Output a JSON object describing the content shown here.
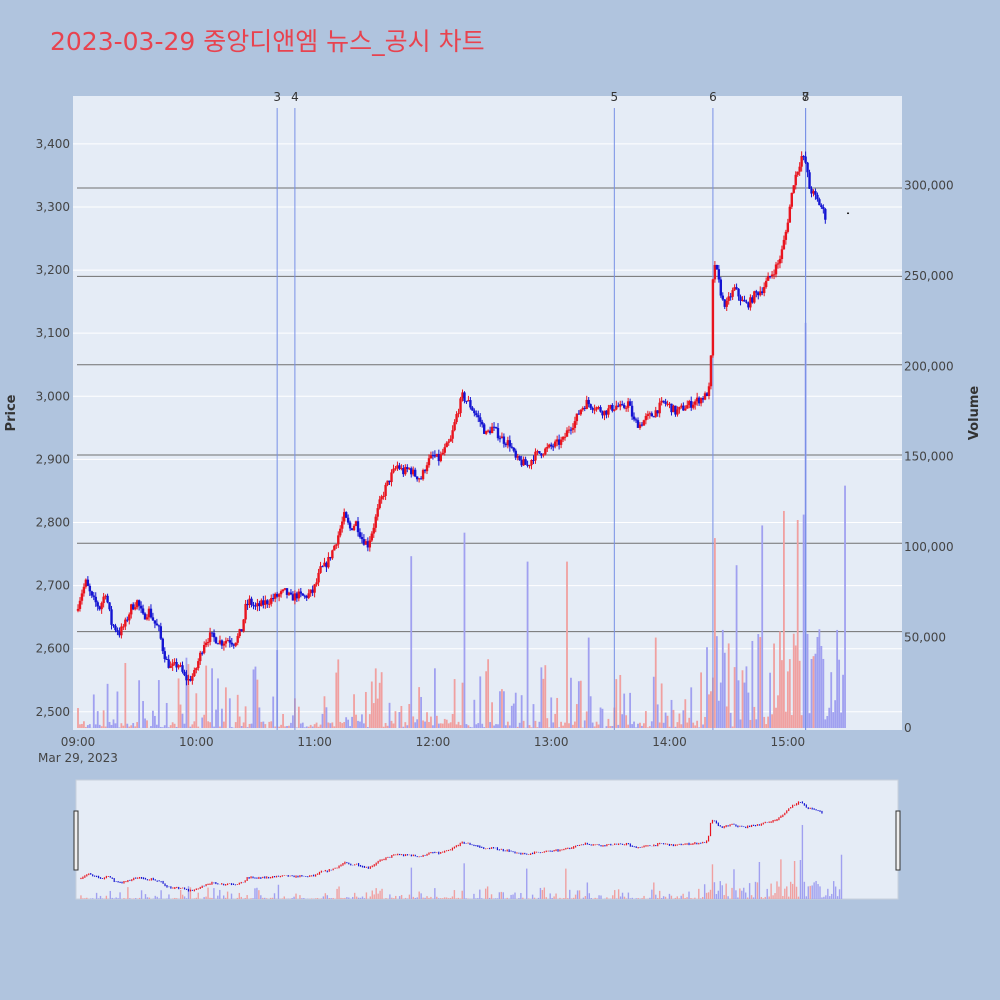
{
  "chart_data": {
    "type": "candlestick",
    "title": "2023-03-29 중앙디앤엠 뉴스_공시 차트",
    "date_label": "Mar 29, 2023",
    "y_label": "Price",
    "y2_label": "Volume",
    "x_ticks": [
      "09:00",
      "10:00",
      "11:00",
      "12:00",
      "13:00",
      "14:00",
      "15:00"
    ],
    "y_ticks": [
      "2,500",
      "2,600",
      "2,700",
      "2,800",
      "2,900",
      "3,000",
      "3,100",
      "3,200",
      "3,300",
      "3,400"
    ],
    "y_tick_values": [
      2500,
      2600,
      2700,
      2800,
      2900,
      3000,
      3100,
      3200,
      3300,
      3400
    ],
    "y_range": [
      2487,
      3460
    ],
    "y2_ticks": [
      "0",
      "50,000",
      "100,000",
      "150,000",
      "200,000",
      "250,000",
      "300,000"
    ],
    "y2_tick_values": [
      0,
      50000,
      100000,
      150000,
      200000,
      250000,
      300000
    ],
    "y2_range": [
      0,
      345000
    ],
    "x_range_minutes": [
      0,
      390
    ],
    "colors": {
      "up": "#e8141e",
      "down": "#1414d2",
      "vol_up": "#f0a0a0",
      "vol_down": "#a0a0f0",
      "title": "#e8434f",
      "plot_bg": "#e5ecf6",
      "page_bg": "#b0c4de",
      "event_line": "#7890e6",
      "hline": "#707070"
    },
    "events": [
      {
        "label": "3",
        "minute": 101
      },
      {
        "label": "4",
        "minute": 110
      },
      {
        "label": "5",
        "minute": 272
      },
      {
        "label": "6",
        "minute": 322
      },
      {
        "label": "7",
        "minute": 369
      },
      {
        "label": "8",
        "minute": 369
      }
    ],
    "hlines": [
      2627,
      2767,
      2907,
      3050,
      3190,
      3330
    ],
    "price_path": [
      [
        0,
        2660
      ],
      [
        3,
        2690
      ],
      [
        5,
        2705
      ],
      [
        8,
        2680
      ],
      [
        12,
        2665
      ],
      [
        15,
        2690
      ],
      [
        18,
        2640
      ],
      [
        22,
        2625
      ],
      [
        25,
        2640
      ],
      [
        28,
        2665
      ],
      [
        31,
        2675
      ],
      [
        34,
        2650
      ],
      [
        37,
        2660
      ],
      [
        40,
        2640
      ],
      [
        42,
        2630
      ],
      [
        44,
        2600
      ],
      [
        46,
        2580
      ],
      [
        48,
        2570
      ],
      [
        52,
        2575
      ],
      [
        55,
        2555
      ],
      [
        57,
        2550
      ],
      [
        60,
        2560
      ],
      [
        62,
        2580
      ],
      [
        65,
        2610
      ],
      [
        68,
        2620
      ],
      [
        71,
        2615
      ],
      [
        74,
        2610
      ],
      [
        77,
        2615
      ],
      [
        80,
        2610
      ],
      [
        82,
        2618
      ],
      [
        84,
        2630
      ],
      [
        86,
        2665
      ],
      [
        88,
        2675
      ],
      [
        91,
        2665
      ],
      [
        94,
        2670
      ],
      [
        97,
        2675
      ],
      [
        100,
        2680
      ],
      [
        103,
        2685
      ],
      [
        106,
        2690
      ],
      [
        109,
        2680
      ],
      [
        112,
        2685
      ],
      [
        116,
        2682
      ],
      [
        120,
        2690
      ],
      [
        122,
        2705
      ],
      [
        124,
        2725
      ],
      [
        126,
        2730
      ],
      [
        128,
        2740
      ],
      [
        130,
        2755
      ],
      [
        133,
        2780
      ],
      [
        136,
        2810
      ],
      [
        139,
        2790
      ],
      [
        142,
        2800
      ],
      [
        145,
        2775
      ],
      [
        148,
        2765
      ],
      [
        151,
        2795
      ],
      [
        154,
        2830
      ],
      [
        157,
        2855
      ],
      [
        160,
        2875
      ],
      [
        163,
        2890
      ],
      [
        166,
        2880
      ],
      [
        169,
        2885
      ],
      [
        172,
        2875
      ],
      [
        175,
        2870
      ],
      [
        178,
        2895
      ],
      [
        181,
        2905
      ],
      [
        184,
        2900
      ],
      [
        187,
        2915
      ],
      [
        190,
        2930
      ],
      [
        193,
        2970
      ],
      [
        196,
        3000
      ],
      [
        199,
        2990
      ],
      [
        202,
        2975
      ],
      [
        205,
        2960
      ],
      [
        208,
        2940
      ],
      [
        211,
        2950
      ],
      [
        214,
        2940
      ],
      [
        217,
        2930
      ],
      [
        220,
        2925
      ],
      [
        223,
        2900
      ],
      [
        226,
        2895
      ],
      [
        229,
        2890
      ],
      [
        232,
        2905
      ],
      [
        235,
        2910
      ],
      [
        238,
        2915
      ],
      [
        241,
        2920
      ],
      [
        244,
        2925
      ],
      [
        247,
        2930
      ],
      [
        250,
        2950
      ],
      [
        253,
        2960
      ],
      [
        256,
        2980
      ],
      [
        259,
        2990
      ],
      [
        262,
        2985
      ],
      [
        265,
        2980
      ],
      [
        268,
        2975
      ],
      [
        271,
        2980
      ],
      [
        274,
        2985
      ],
      [
        277,
        2980
      ],
      [
        280,
        2990
      ],
      [
        283,
        2960
      ],
      [
        286,
        2955
      ],
      [
        289,
        2965
      ],
      [
        292,
        2970
      ],
      [
        295,
        2980
      ],
      [
        298,
        2990
      ],
      [
        301,
        2985
      ],
      [
        304,
        2975
      ],
      [
        307,
        2980
      ],
      [
        310,
        2985
      ],
      [
        313,
        2990
      ],
      [
        316,
        2995
      ],
      [
        319,
        3000
      ],
      [
        321,
        3010
      ],
      [
        322,
        3060
      ],
      [
        323,
        3180
      ],
      [
        324,
        3210
      ],
      [
        326,
        3180
      ],
      [
        328,
        3150
      ],
      [
        330,
        3145
      ],
      [
        332,
        3160
      ],
      [
        334,
        3170
      ],
      [
        336,
        3160
      ],
      [
        338,
        3150
      ],
      [
        340,
        3145
      ],
      [
        342,
        3150
      ],
      [
        344,
        3160
      ],
      [
        346,
        3165
      ],
      [
        348,
        3170
      ],
      [
        350,
        3180
      ],
      [
        352,
        3190
      ],
      [
        354,
        3200
      ],
      [
        356,
        3210
      ],
      [
        358,
        3230
      ],
      [
        360,
        3260
      ],
      [
        362,
        3300
      ],
      [
        364,
        3340
      ],
      [
        366,
        3360
      ],
      [
        368,
        3380
      ],
      [
        370,
        3370
      ],
      [
        372,
        3330
      ],
      [
        374,
        3320
      ],
      [
        376,
        3310
      ],
      [
        378,
        3300
      ],
      [
        380,
        3285
      ]
    ],
    "volume_spikes": [
      [
        169,
        95000
      ],
      [
        196,
        108000
      ],
      [
        228,
        92000
      ],
      [
        248,
        92000
      ],
      [
        259,
        50000
      ],
      [
        293,
        50000
      ],
      [
        323,
        105000
      ],
      [
        334,
        90000
      ],
      [
        347,
        112000
      ],
      [
        358,
        120000
      ],
      [
        365,
        115000
      ],
      [
        368,
        118000
      ],
      [
        369,
        224000
      ],
      [
        389,
        134000
      ]
    ],
    "end_marker": [
      389,
      3290
    ]
  }
}
